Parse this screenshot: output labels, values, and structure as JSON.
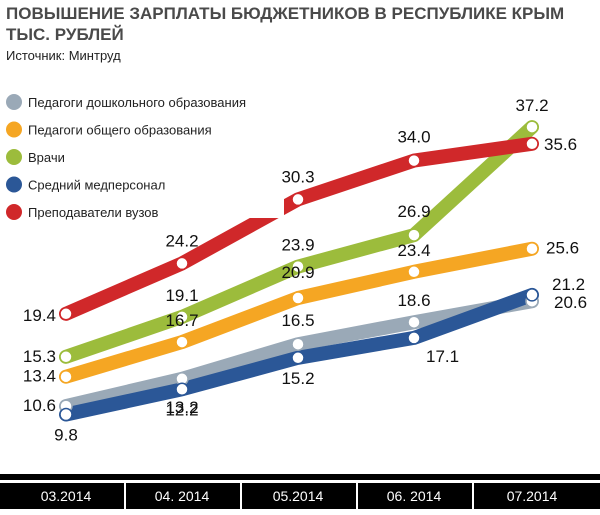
{
  "header": {
    "title_line1": "ПОВЫШЕНИЕ ЗАРПЛАТЫ БЮДЖЕТНИКОВ В РЕСПУБЛИКЕ КРЫМ",
    "title_line2": "ТЫС. РУБЛЕЙ",
    "source": "Источник: Минтруд"
  },
  "chart_data": {
    "type": "line",
    "title": "ПОВЫШЕНИЕ ЗАРПЛАТЫ БЮДЖЕТНИКОВ В РЕСПУБЛИКЕ КРЫМ",
    "ylabel": "ТЫС. РУБЛЕЙ",
    "categories": [
      "03.2014",
      "04. 2014",
      "05.2014",
      "06. 2014",
      "07.2014"
    ],
    "ylim": [
      8,
      38
    ],
    "grid": false,
    "legend_position": "top-left",
    "series": [
      {
        "name": "Педагоги дошкольного образования",
        "color": "#9aa9b7",
        "values": [
          10.6,
          13.2,
          16.5,
          18.6,
          20.6
        ]
      },
      {
        "name": "Педагоги общего образования",
        "color": "#f5a623",
        "values": [
          13.4,
          16.7,
          20.9,
          23.4,
          25.6
        ]
      },
      {
        "name": "Врачи",
        "color": "#9cbc3c",
        "values": [
          15.3,
          19.1,
          23.9,
          26.9,
          37.2
        ]
      },
      {
        "name": "Средний медперсонал",
        "color": "#2b5797",
        "values": [
          9.8,
          12.2,
          15.2,
          17.1,
          21.2
        ]
      },
      {
        "name": "Преподаватели вузов",
        "color": "#d0282a",
        "values": [
          19.4,
          24.2,
          30.3,
          34.0,
          35.6
        ]
      }
    ]
  }
}
